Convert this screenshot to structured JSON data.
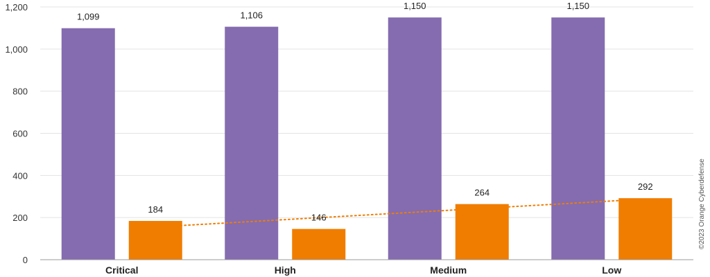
{
  "copyright": "©2023 Orange Cyberdefense",
  "colors": {
    "series_a": "#856cb0",
    "series_b": "#f07d00",
    "trend": "#f07d00",
    "grid": "#e3e3e3",
    "axis": "#999999"
  },
  "chart_data": {
    "type": "bar",
    "categories": [
      "Critical",
      "High",
      "Medium",
      "Low"
    ],
    "series": [
      {
        "values": [
          1099,
          1106,
          1150,
          1150
        ],
        "labels": [
          "1,099",
          "1,106",
          "1,150",
          "1,150"
        ]
      },
      {
        "values": [
          184,
          146,
          264,
          292
        ],
        "labels": [
          "184",
          "146",
          "264",
          "292"
        ],
        "trendline": "linear (dotted)"
      }
    ],
    "y_ticks": [
      "0",
      "200",
      "400",
      "600",
      "800",
      "1,000",
      "1,200"
    ],
    "ylim": [
      0,
      1200
    ],
    "grid": true,
    "legend": "none"
  }
}
